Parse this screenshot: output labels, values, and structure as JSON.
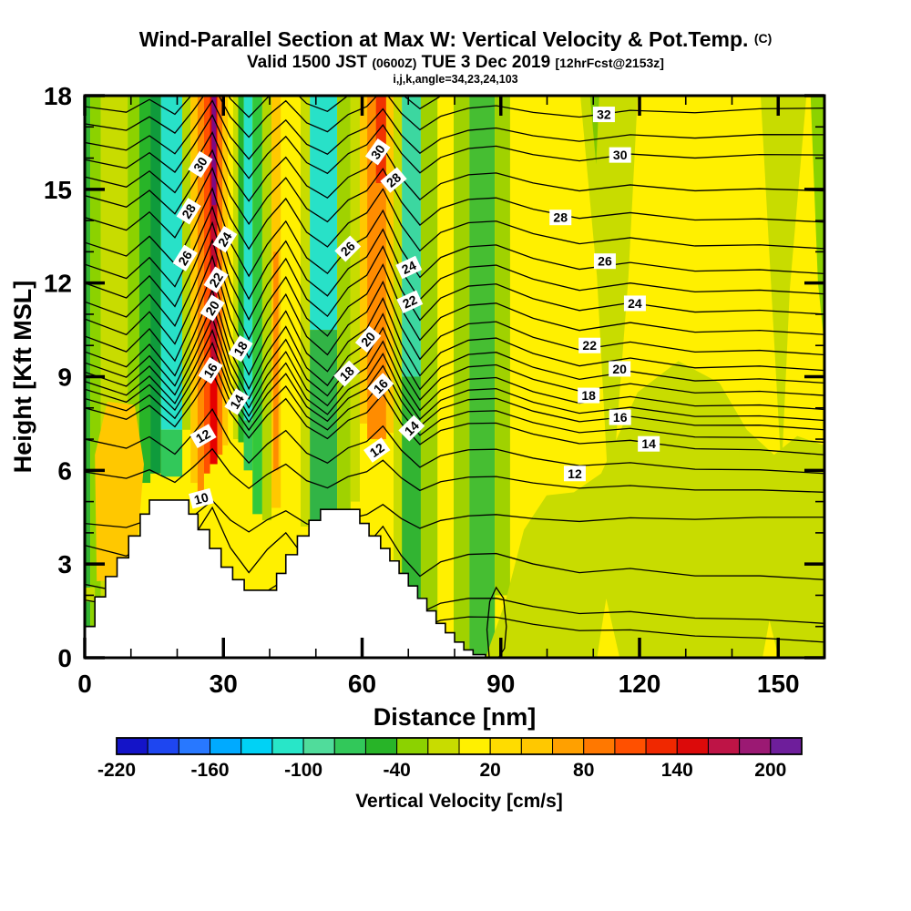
{
  "header": {
    "title_main": "Wind-Parallel Section at Max W: Vertical Velocity & Pot.Temp.",
    "title_unit": "(C)",
    "valid_prefix": "Valid 1500 JST",
    "valid_z": "(0600Z)",
    "valid_date": "TUE 3 Dec 2019",
    "forecast_tag": "[12hrFcst@2153z]",
    "index_note": "i,j,k,angle=34,23,24,103"
  },
  "chart_data": {
    "type": "heatmap",
    "title": "Wind-Parallel Section at Max W: Vertical Velocity & Pot.Temp. (C)",
    "subtitle": "Valid 1500 JST (0600Z) TUE 3 Dec 2019 [12hrFcst@2153z]",
    "note": "i,j,k,angle=34,23,24,103",
    "xlabel": "Distance [nm]",
    "ylabel": "Height [Kft MSL]",
    "xlim": [
      0,
      160
    ],
    "ylim": [
      0,
      18
    ],
    "x_major_ticks": [
      0,
      30,
      60,
      90,
      120,
      150
    ],
    "x_minor_step": 10,
    "y_major_ticks": [
      0,
      3,
      6,
      9,
      12,
      15,
      18
    ],
    "y_minor_step": 1,
    "grid": false,
    "background_color": "#FFF000",
    "shaded_field": "Vertical Velocity [cm/s]",
    "contour_field": "Potential Temperature [C]",
    "contour_interval": 1,
    "colorbar": {
      "label": "Vertical Velocity [cm/s]",
      "min": -220,
      "max": 220,
      "step": 20,
      "tick_labels": [
        "-220",
        "-160",
        "-100",
        "-40",
        "20",
        "80",
        "140",
        "200"
      ],
      "tick_boundary_index": [
        0,
        3,
        6,
        9,
        12,
        15,
        18,
        21
      ],
      "colors": [
        "#1414C8",
        "#1E46F0",
        "#2878FF",
        "#00AAFF",
        "#00D2F5",
        "#28E6C8",
        "#50DC9B",
        "#32C85A",
        "#28B428",
        "#8CD200",
        "#C8DC00",
        "#FFF000",
        "#FFDC00",
        "#FFC800",
        "#FFA000",
        "#FF7800",
        "#FF5000",
        "#F02800",
        "#DC0A0A",
        "#BE1446",
        "#9B1973",
        "#6E1E9B"
      ]
    },
    "wave_nodes_nm": [
      0,
      9,
      14,
      19.5,
      23.5,
      27.6,
      31.5,
      35.5,
      39.5,
      43.5,
      48,
      52.5,
      57,
      61,
      64.5,
      68.5,
      72.5,
      77,
      83,
      89,
      97,
      107,
      118,
      132,
      146,
      160
    ],
    "wave_mult": [
      0,
      -0.2,
      0.15,
      -0.3,
      0.3,
      1.0,
      0.1,
      -0.45,
      0.1,
      0.5,
      -0.1,
      -0.35,
      0.1,
      0.3,
      0.75,
      0.1,
      -0.35,
      0,
      0.2,
      0.25,
      0.05,
      -0.1,
      0.05,
      -0.05,
      0.02,
      0
    ],
    "isotherm_lines": [
      [
        33,
        17.65,
        18.35,
        1.1
      ],
      [
        32,
        17.1,
        17.6,
        1.2
      ],
      [
        31,
        16.5,
        16.75,
        1.3
      ],
      [
        30,
        15.95,
        16.1,
        1.4
      ],
      [
        29,
        15.4,
        14.95,
        1.5
      ],
      [
        28,
        14.8,
        13.95,
        1.6
      ],
      [
        27,
        14.1,
        13.1,
        1.75
      ],
      [
        26,
        13.3,
        12.3,
        1.9
      ],
      [
        25,
        12.6,
        11.65,
        2.0
      ],
      [
        24,
        12.0,
        11.0,
        2.1
      ],
      [
        23,
        11.4,
        10.35,
        2.15
      ],
      [
        22,
        10.85,
        9.7,
        2.2
      ],
      [
        21,
        10.3,
        9.2,
        2.2
      ],
      [
        20,
        9.8,
        8.8,
        2.15
      ],
      [
        19,
        9.45,
        8.4,
        2.05
      ],
      [
        18,
        9.15,
        7.95,
        1.95
      ],
      [
        17,
        8.85,
        7.6,
        1.85
      ],
      [
        16,
        8.6,
        7.3,
        1.7
      ],
      [
        15,
        8.3,
        6.9,
        1.55
      ],
      [
        14,
        8.0,
        6.5,
        1.4
      ],
      [
        13,
        7.0,
        5.9,
        1.15
      ],
      [
        12,
        5.95,
        5.3,
        0.85
      ],
      [
        11,
        4.3,
        4.5,
        0.7
      ],
      [
        10,
        3.6,
        2.5,
        1.4
      ],
      [
        9,
        2.35,
        1.1,
        1.0
      ],
      [
        8,
        1.85,
        0.5,
        0.8
      ]
    ],
    "closed_contour_10_loop": [
      [
        87.5,
        0
      ],
      [
        87.0,
        0.9
      ],
      [
        87.6,
        1.8
      ],
      [
        89.0,
        2.25
      ],
      [
        90.6,
        1.9
      ],
      [
        91.2,
        1.0
      ],
      [
        90.8,
        0.3
      ],
      [
        89.5,
        0
      ]
    ],
    "isotherm_labels": [
      [
        "30",
        25.0,
        15.8,
        -58
      ],
      [
        "28",
        22.5,
        14.3,
        -58
      ],
      [
        "26",
        21.7,
        12.8,
        -58
      ],
      [
        "24",
        30.3,
        13.4,
        -58
      ],
      [
        "22",
        28.4,
        12.1,
        -58
      ],
      [
        "20",
        27.6,
        11.2,
        -58
      ],
      [
        "18",
        33.7,
        9.9,
        -58
      ],
      [
        "16",
        27.2,
        9.2,
        -58
      ],
      [
        "14",
        32.9,
        8.2,
        -58
      ],
      [
        "12",
        25.6,
        7.1,
        -30
      ],
      [
        "10",
        25.2,
        5.1,
        -15
      ],
      [
        "30",
        63.4,
        16.2,
        -55
      ],
      [
        "28",
        66.8,
        15.3,
        -40
      ],
      [
        "26",
        56.9,
        13.1,
        -45
      ],
      [
        "24",
        70.1,
        12.5,
        -25
      ],
      [
        "22",
        70.3,
        11.4,
        -25
      ],
      [
        "20",
        61.3,
        10.2,
        -50
      ],
      [
        "18",
        56.7,
        9.1,
        -45
      ],
      [
        "16",
        64.0,
        8.7,
        -45
      ],
      [
        "14",
        70.7,
        7.35,
        -45
      ],
      [
        "12",
        63.2,
        6.65,
        -35
      ],
      [
        "32",
        112.3,
        17.4,
        0
      ],
      [
        "30",
        115.8,
        16.1,
        0
      ],
      [
        "28",
        102.9,
        14.1,
        0
      ],
      [
        "26",
        112.5,
        12.7,
        0
      ],
      [
        "24",
        119.0,
        11.35,
        0
      ],
      [
        "22",
        109.2,
        10.0,
        0
      ],
      [
        "20",
        115.7,
        9.25,
        0
      ],
      [
        "18",
        109.0,
        8.4,
        0
      ],
      [
        "16",
        115.8,
        7.7,
        0
      ],
      [
        "14",
        122.0,
        6.85,
        0
      ],
      [
        "12",
        106.0,
        5.9,
        0
      ]
    ],
    "terrain_steps_nm_kft": [
      [
        0,
        1.0
      ],
      [
        2.2,
        1.95
      ],
      [
        4.5,
        2.6
      ],
      [
        7.0,
        3.2
      ],
      [
        9.5,
        3.9
      ],
      [
        12.0,
        4.6
      ],
      [
        14.0,
        5.05
      ],
      [
        22.5,
        4.6
      ],
      [
        24.5,
        4.1
      ],
      [
        27.0,
        3.5
      ],
      [
        29.5,
        2.9
      ],
      [
        32.0,
        2.5
      ],
      [
        34.5,
        2.16
      ],
      [
        41.5,
        2.7
      ],
      [
        43.5,
        3.3
      ],
      [
        46.0,
        3.9
      ],
      [
        48.5,
        4.4
      ],
      [
        51.0,
        4.75
      ],
      [
        59.5,
        4.3
      ],
      [
        61.5,
        3.9
      ],
      [
        64.0,
        3.5
      ],
      [
        66.0,
        3.1
      ],
      [
        68.0,
        2.7
      ],
      [
        70.0,
        2.3
      ],
      [
        72.0,
        1.9
      ],
      [
        74.0,
        1.5
      ],
      [
        76.0,
        1.1
      ],
      [
        78.0,
        0.8
      ],
      [
        80.0,
        0.5
      ],
      [
        82.0,
        0.25
      ],
      [
        84.0,
        0.1
      ],
      [
        86.7,
        0
      ]
    ],
    "vv_bands": [
      {
        "x0": 0.0,
        "x1": 1.2,
        "y1": 0,
        "c": "#32B432"
      },
      {
        "x0": 1.2,
        "x1": 3.5,
        "y1": 0,
        "c": "#8CD200"
      },
      {
        "x0": 3.5,
        "x1": 9.3,
        "y1": 0,
        "c": "#C8DC00"
      },
      {
        "x0": 9.3,
        "x1": 11.8,
        "y1": 5.3,
        "c": "#8CD200"
      },
      {
        "x0": 11.8,
        "x1": 14.2,
        "y1": 5.6,
        "c": "#28B428"
      },
      {
        "x0": 14.2,
        "x1": 16.5,
        "y1": 5.9,
        "c": "#0F9B3C"
      },
      {
        "x0": 16.5,
        "x1": 21.1,
        "y1": 7.3,
        "c": "#28E1C8"
      },
      {
        "x0": 16.5,
        "x1": 21.1,
        "y0": 7.3,
        "y1": 5.8,
        "c": "#32C85A"
      },
      {
        "x0": 21.1,
        "x1": 22.9,
        "y1": 7.3,
        "c": "#B4D700"
      },
      {
        "x0": 22.9,
        "x1": 24.4,
        "y1": 5.6,
        "c": "#FFC800"
      },
      {
        "x0": 24.4,
        "x1": 25.8,
        "y1": 5.3,
        "c": "#FF8C00"
      },
      {
        "x0": 25.8,
        "x1": 27.1,
        "y1": 5.9,
        "c": "#FF5000"
      },
      {
        "x0": 27.1,
        "x1": 28.7,
        "y1": 6.2,
        "c": "#E60000"
      },
      {
        "x0": 27.3,
        "x1": 28.5,
        "y1": 9.0,
        "c": "#BE0A32"
      },
      {
        "x0": 27.5,
        "x1": 28.4,
        "y1": 14.5,
        "c": "#7D0A82"
      },
      {
        "x0": 28.7,
        "x1": 29.8,
        "y1": 6.5,
        "c": "#FF7800"
      },
      {
        "x0": 29.8,
        "x1": 31.0,
        "y1": 6.8,
        "c": "#FFC800"
      },
      {
        "x0": 31.0,
        "x1": 32.1,
        "y1": 7.0,
        "c": "#FFF000"
      },
      {
        "x0": 32.1,
        "x1": 33.2,
        "y1": 7.0,
        "c": "#C8DC00"
      },
      {
        "x0": 33.2,
        "x1": 34.4,
        "y1": 6.9,
        "c": "#28B428"
      },
      {
        "x0": 34.4,
        "x1": 36.3,
        "y1": 7.6,
        "c": "#28E1C8"
      },
      {
        "x0": 34.4,
        "x1": 36.3,
        "y0": 7.6,
        "y1": 6.0,
        "c": "#32C85A"
      },
      {
        "x0": 36.3,
        "x1": 38.4,
        "y1": 4.6,
        "c": "#32C83C"
      },
      {
        "x0": 38.4,
        "x1": 40.4,
        "y1": 4.4,
        "c": "#B4D700"
      },
      {
        "x0": 40.4,
        "x1": 42.4,
        "y1": 4.8,
        "c": "#FFC800"
      },
      {
        "x0": 40.8,
        "x1": 41.9,
        "y0": 13.0,
        "y1": 6.0,
        "c": "#FF8C00"
      },
      {
        "x0": 46.7,
        "x1": 48.7,
        "y1": 4.2,
        "c": "#C8DC00"
      },
      {
        "x0": 48.7,
        "x1": 54.6,
        "y1": 10.5,
        "c": "#28E1C8"
      },
      {
        "x0": 48.7,
        "x1": 54.6,
        "y0": 10.5,
        "y1": 3.5,
        "c": "#32B446"
      },
      {
        "x0": 54.6,
        "x1": 57.5,
        "y1": 3.8,
        "c": "#A0D200"
      },
      {
        "x0": 57.5,
        "x1": 59.5,
        "y1": 5.0,
        "c": "#C8DC00"
      },
      {
        "x0": 59.5,
        "x1": 61.1,
        "y1": 7.5,
        "c": "#FFC800"
      },
      {
        "x0": 61.1,
        "x1": 65.2,
        "y1": 7.0,
        "c": "#FF8C00"
      },
      {
        "x0": 63.0,
        "x1": 65.2,
        "y0": 18,
        "y1": 15.2,
        "c": "#F03200"
      },
      {
        "x0": 65.2,
        "x1": 66.8,
        "y1": 7.2,
        "c": "#FFC800"
      },
      {
        "x0": 66.8,
        "x1": 68.6,
        "y1": 0,
        "c": "#C8DC00"
      },
      {
        "x0": 68.6,
        "x1": 72.7,
        "y1": 9.0,
        "c": "#3CD7A0"
      },
      {
        "x0": 68.6,
        "x1": 72.7,
        "y0": 9.0,
        "y1": 0,
        "c": "#32B432"
      },
      {
        "x0": 72.7,
        "x1": 76.3,
        "y1": 0,
        "c": "#A0D200"
      },
      {
        "x0": 79.8,
        "x1": 83.2,
        "y1": 0,
        "c": "#A0D200"
      },
      {
        "x0": 83.2,
        "x1": 88.7,
        "y1": 0,
        "c": "#46BE32"
      },
      {
        "x0": 88.7,
        "x1": 92.0,
        "y1": 2.0,
        "c": "#A0D200"
      },
      {
        "x0": 0,
        "x1": 2.2,
        "y0": 2.25,
        "y1": 1.8,
        "c": "#C8DC00"
      },
      {
        "pts": [
          [
            107.2,
            18
          ],
          [
            119.6,
            18
          ],
          [
            117.6,
            12.2
          ],
          [
            113.6,
            4.4
          ],
          [
            110.8,
            12.2
          ]
        ],
        "c": "#C8DC00"
      },
      {
        "pts": [
          [
            109.3,
            18
          ],
          [
            111.3,
            18
          ],
          [
            110.6,
            15.8
          ]
        ],
        "c": "#7DC800"
      },
      {
        "pts": [
          [
            146.2,
            18
          ],
          [
            156.1,
            18
          ],
          [
            152.5,
            11.8
          ],
          [
            150.7,
            5.9
          ]
        ],
        "c": "#C8DC00"
      },
      {
        "pts": [
          [
            157.0,
            18
          ],
          [
            160,
            18
          ],
          [
            160,
            10.0
          ],
          [
            158.6,
            12.0
          ]
        ],
        "c": "#8CD200"
      },
      {
        "pts": [
          [
            86.7,
            0
          ],
          [
            91,
            1.8
          ],
          [
            95,
            4.1
          ],
          [
            99.9,
            5.2
          ],
          [
            105.8,
            5.3
          ],
          [
            111.7,
            5.9
          ],
          [
            119.6,
            8.5
          ],
          [
            128.4,
            9.5
          ],
          [
            137.3,
            8.8
          ],
          [
            143.2,
            7.3
          ],
          [
            149.1,
            6.5
          ],
          [
            154.1,
            7.1
          ],
          [
            160,
            6.8
          ],
          [
            160,
            0
          ]
        ],
        "c": "#C8DC00"
      },
      {
        "pts": [
          [
            110.8,
            0
          ],
          [
            112.8,
            1.9
          ],
          [
            115.7,
            0
          ]
        ],
        "c": "#FFF000"
      },
      {
        "pts": [
          [
            146.6,
            0
          ],
          [
            148.1,
            1.2
          ],
          [
            150.1,
            0
          ]
        ],
        "c": "#FFF000"
      },
      {
        "pts": [
          [
            2.2,
            6.5
          ],
          [
            4.9,
            8.2
          ],
          [
            10.8,
            8.1
          ],
          [
            12.8,
            6.2
          ],
          [
            11.6,
            4.0
          ],
          [
            6.9,
            2.5
          ],
          [
            2.6,
            2.45
          ]
        ],
        "c": "#FFC800"
      }
    ]
  }
}
